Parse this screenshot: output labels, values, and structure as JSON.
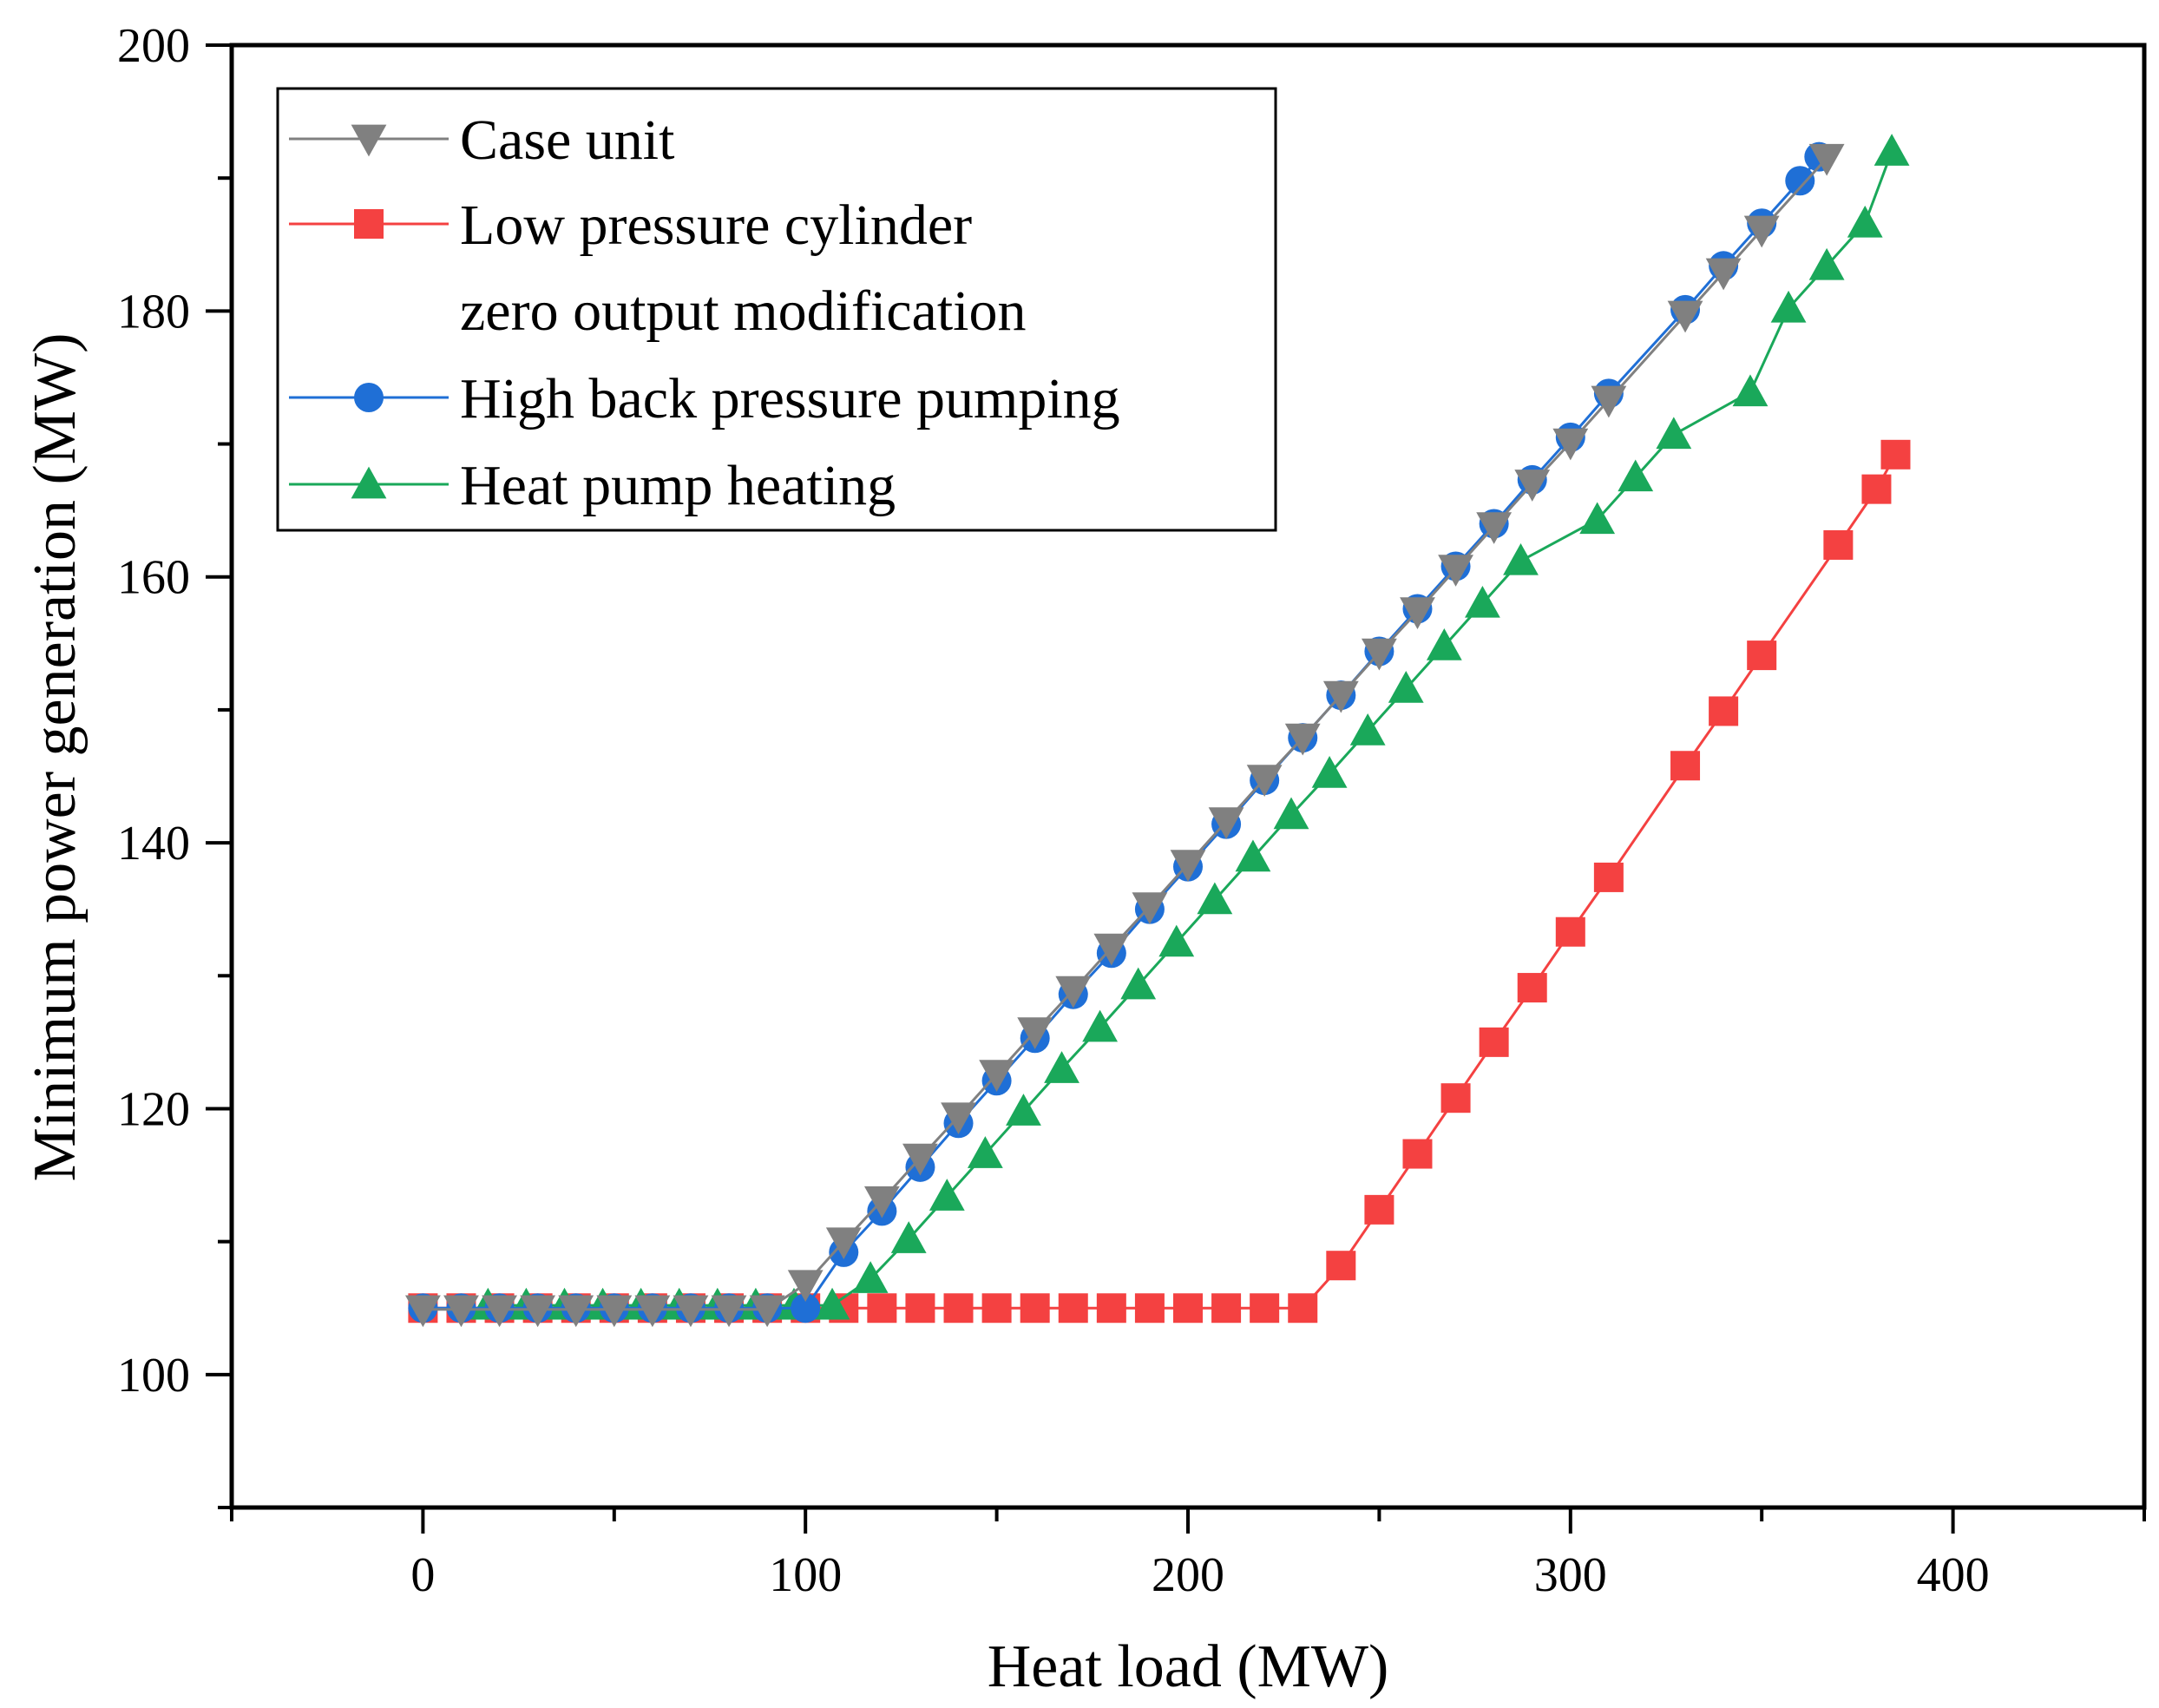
{
  "chart_data": {
    "type": "line",
    "title": "",
    "xlabel": "Heat load (MW)",
    "ylabel": "Minimum power generation (MW)",
    "xlim": [
      -50,
      450
    ],
    "ylim": [
      90,
      200
    ],
    "xticks": [
      0,
      100,
      200,
      300,
      400
    ],
    "yticks": [
      100,
      120,
      140,
      160,
      180,
      200
    ],
    "grid": false,
    "legend": {
      "placement": "top-left",
      "entries": [
        {
          "text": "Case unit"
        },
        {
          "text": "Low pressure cylinder"
        },
        {
          "text": "zero output modification"
        },
        {
          "text": "High back pressure pumping"
        },
        {
          "text": "Heat pump heating"
        }
      ]
    },
    "series": [
      {
        "name": "Case unit",
        "legend_index": 0,
        "color": "#808080",
        "marker": "triangle-down",
        "x": [
          0,
          10,
          20,
          30,
          40,
          50,
          60,
          70,
          80,
          90,
          100,
          110,
          120,
          130,
          140,
          150,
          160,
          170,
          180,
          190,
          200,
          210,
          220,
          230,
          240,
          250,
          260,
          270,
          280,
          290,
          300,
          310,
          330,
          340,
          350,
          367
        ],
        "y": [
          104.9,
          104.9,
          104.9,
          104.9,
          104.9,
          104.9,
          104.9,
          104.9,
          104.9,
          104.9,
          106.8,
          110.0,
          113.1,
          116.3,
          119.4,
          122.6,
          125.8,
          128.9,
          132.1,
          135.2,
          138.4,
          141.6,
          144.8,
          147.9,
          151.1,
          154.3,
          157.4,
          160.6,
          163.8,
          167.0,
          170.1,
          173.3,
          179.7,
          182.9,
          186.1,
          191.5
        ]
      },
      {
        "name": "Low pressure cylinder zero output modification",
        "legend_index": 1,
        "color": "#f44141",
        "marker": "square",
        "x": [
          0,
          10,
          20,
          30,
          40,
          50,
          60,
          70,
          80,
          90,
          100,
          110,
          120,
          130,
          140,
          150,
          160,
          170,
          180,
          190,
          200,
          210,
          220,
          230,
          240,
          250,
          260,
          270,
          280,
          290,
          300,
          310,
          330,
          340,
          350,
          370,
          380,
          385
        ],
        "y": [
          105,
          105,
          105,
          105,
          105,
          105,
          105,
          105,
          105,
          105,
          105,
          105,
          105,
          105,
          105,
          105,
          105,
          105,
          105,
          105,
          105,
          105,
          105,
          105,
          108.2,
          112.4,
          116.6,
          120.8,
          125.0,
          129.1,
          133.3,
          137.4,
          145.8,
          149.9,
          154.1,
          162.4,
          166.6,
          169.2
        ]
      },
      {
        "name": "High back pressure pumping",
        "legend_index": 3,
        "color": "#1f6fd6",
        "marker": "circle",
        "x": [
          0,
          10,
          20,
          30,
          40,
          50,
          60,
          70,
          80,
          90,
          100,
          110,
          120,
          130,
          140,
          150,
          160,
          170,
          180,
          190,
          200,
          210,
          220,
          230,
          240,
          250,
          260,
          270,
          280,
          290,
          300,
          310,
          330,
          340,
          350,
          360,
          365
        ],
        "y": [
          105,
          105,
          105,
          105,
          105,
          105,
          105,
          105,
          105,
          105,
          105,
          109.2,
          112.3,
          115.6,
          118.9,
          122.1,
          125.3,
          128.6,
          131.7,
          135.0,
          138.2,
          141.4,
          144.7,
          147.9,
          151.1,
          154.4,
          157.6,
          160.8,
          164.0,
          167.3,
          170.5,
          173.8,
          180.1,
          183.4,
          186.6,
          189.8,
          191.6
        ]
      },
      {
        "name": "Heat pump heating",
        "legend_index": 4,
        "color": "#1aa85a",
        "marker": "triangle-up",
        "x": [
          17,
          27,
          37,
          47,
          57,
          67,
          77,
          87,
          97,
          107,
          117,
          127,
          137,
          147,
          157,
          167,
          177,
          187,
          197,
          207,
          217,
          227,
          237,
          247,
          257,
          267,
          277,
          287,
          307,
          317,
          327,
          347,
          357,
          367,
          377,
          384
        ],
        "y": [
          105.2,
          105.2,
          105.2,
          105.2,
          105.2,
          105.2,
          105.2,
          105.2,
          105.2,
          105.2,
          107.2,
          110.2,
          113.4,
          116.6,
          119.8,
          123.0,
          126.1,
          129.3,
          132.5,
          135.7,
          138.9,
          142.1,
          145.2,
          148.4,
          151.6,
          154.8,
          158.0,
          161.2,
          164.3,
          167.5,
          170.7,
          173.9,
          180.2,
          183.4,
          186.6,
          192.0
        ]
      }
    ]
  }
}
